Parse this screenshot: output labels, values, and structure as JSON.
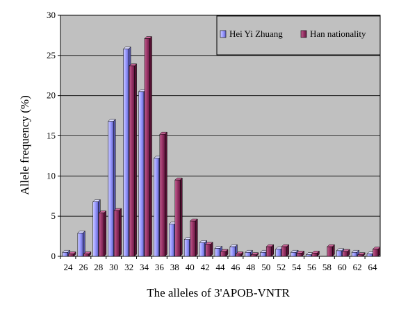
{
  "chart_data": {
    "type": "bar",
    "xlabel": "The alleles of 3'APOB-VNTR",
    "ylabel": "Allele frequency (%)",
    "ylim": [
      0,
      30
    ],
    "yticks": [
      "0",
      "5",
      "10",
      "15",
      "20",
      "25",
      "30"
    ],
    "grid": "horizontal",
    "legend_position": "top-right",
    "categories": [
      "24",
      "26",
      "28",
      "30",
      "32",
      "34",
      "36",
      "38",
      "40",
      "42",
      "44",
      "46",
      "48",
      "50",
      "52",
      "54",
      "56",
      "58",
      "60",
      "62",
      "64"
    ],
    "series": [
      {
        "name": "Hei Yi Zhuang",
        "color": "#9999ff",
        "values": [
          0.5,
          2.9,
          6.8,
          16.8,
          25.8,
          20.5,
          12.2,
          4.0,
          2.1,
          1.7,
          1.0,
          1.2,
          0.5,
          0.5,
          0.9,
          0.5,
          0.2,
          0.0,
          0.7,
          0.5,
          0.3
        ]
      },
      {
        "name": "Han nationality",
        "color": "#993366",
        "values": [
          0.3,
          0.3,
          5.4,
          5.7,
          23.7,
          27.1,
          15.2,
          9.5,
          4.4,
          1.5,
          0.6,
          0.3,
          0.2,
          1.2,
          1.2,
          0.4,
          0.4,
          1.2,
          0.6,
          0.2,
          0.9
        ]
      }
    ]
  }
}
